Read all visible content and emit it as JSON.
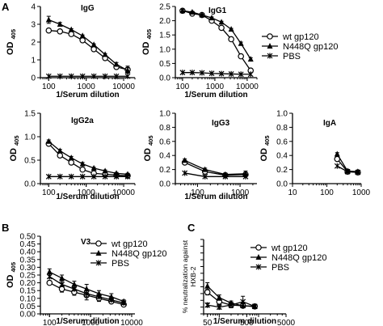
{
  "figure": {
    "panel_labels": [
      "A",
      "B",
      "C"
    ]
  },
  "marker_shapes": {
    "wt gp120": "open-circle",
    "N448Q gp120": "filled-triangle",
    "PBS": "star-cross"
  },
  "colors": {
    "ink": "#000000",
    "background": "#ffffff"
  },
  "legends": [
    {
      "panel": "IgG1",
      "entries": [
        "wt gp120",
        "N448Q gp120",
        "PBS"
      ]
    },
    {
      "panel": "V3",
      "entries": [
        "wt gp120",
        "N448Q gp120",
        "PBS"
      ]
    },
    {
      "panel": "HXB-2 neutralization",
      "entries": [
        "wt gp120",
        "N448Q gp120",
        "PBS"
      ]
    }
  ],
  "chart_data": [
    {
      "type": "line",
      "panel_label": "A",
      "title": "IgG",
      "xlabel": "1/Serum dilution",
      "ylabel": "OD 405",
      "xscale": "log",
      "xlim": [
        60,
        20000
      ],
      "ylim": [
        0,
        4
      ],
      "xticks": [
        100,
        1000,
        10000
      ],
      "yticks": [
        0,
        1,
        2,
        3,
        4
      ],
      "xticklabels": [
        "100",
        "1000",
        "10000"
      ],
      "yticklabels": [
        "0",
        "1",
        "2",
        "3",
        "4"
      ],
      "legend": "none",
      "series": [
        {
          "name": "wt gp120",
          "marker": "open-circle",
          "x": [
            100,
            200,
            400,
            800,
            1600,
            3200,
            6400,
            12800
          ],
          "y": [
            2.65,
            2.6,
            2.45,
            2.1,
            1.6,
            1.1,
            0.6,
            0.45
          ],
          "err": [
            0.05,
            0.05,
            0.05,
            0.05,
            0.05,
            0.05,
            0.1,
            0.2
          ]
        },
        {
          "name": "N448Q gp120",
          "marker": "filled-triangle",
          "x": [
            100,
            200,
            400,
            800,
            1600,
            3200,
            6400,
            12800
          ],
          "y": [
            3.25,
            3.0,
            2.7,
            2.35,
            1.85,
            1.3,
            0.75,
            0.4
          ],
          "err": [
            0.2,
            0.1,
            0.05,
            0.05,
            0.05,
            0.05,
            0.1,
            0.15
          ]
        },
        {
          "name": "PBS",
          "marker": "star-cross",
          "x": [
            100,
            200,
            400,
            800,
            1600,
            3200,
            6400,
            12800
          ],
          "y": [
            0.08,
            0.08,
            0.08,
            0.08,
            0.08,
            0.08,
            0.08,
            0.08
          ],
          "err": [
            0,
            0,
            0,
            0,
            0,
            0,
            0,
            0
          ]
        }
      ]
    },
    {
      "type": "line",
      "title": "IgG1",
      "xlabel": "1/Serum dilution",
      "ylabel": "OD 405",
      "xscale": "log",
      "xlim": [
        60,
        20000
      ],
      "ylim": [
        0,
        2.5
      ],
      "xticks": [
        100,
        1000,
        10000
      ],
      "yticks": [
        0,
        0.5,
        1,
        1.5,
        2,
        2.5
      ],
      "xticklabels": [
        "100",
        "1000",
        "10000"
      ],
      "yticklabels": [
        "0.0",
        "0.5",
        "1.0",
        "1.5",
        "2.0",
        "2.5"
      ],
      "legend": "right",
      "series": [
        {
          "name": "wt gp120",
          "marker": "open-circle",
          "x": [
            100,
            200,
            400,
            800,
            1600,
            3200,
            6400,
            12800
          ],
          "y": [
            2.35,
            2.25,
            2.2,
            2.0,
            1.75,
            1.35,
            0.75,
            0.25
          ],
          "err": [
            0.05,
            0.03,
            0.03,
            0.03,
            0.03,
            0.03,
            0.05,
            0.05
          ]
        },
        {
          "name": "N448Q gp120",
          "marker": "filled-triangle",
          "x": [
            100,
            200,
            400,
            800,
            1600,
            3200,
            6400,
            12800
          ],
          "y": [
            2.35,
            2.3,
            2.2,
            2.1,
            1.95,
            1.7,
            1.2,
            0.65
          ],
          "err": [
            0.05,
            0.03,
            0.03,
            0.03,
            0.03,
            0.03,
            0.05,
            0.05
          ]
        },
        {
          "name": "PBS",
          "marker": "star-cross",
          "x": [
            100,
            200,
            400,
            800,
            1600,
            3200,
            6400,
            12800
          ],
          "y": [
            0.18,
            0.18,
            0.17,
            0.15,
            0.14,
            0.13,
            0.12,
            0.12
          ],
          "err": [
            0,
            0,
            0,
            0,
            0,
            0,
            0,
            0
          ]
        }
      ]
    },
    {
      "type": "line",
      "title": "IgG2a",
      "xlabel": "1/Serum dilution",
      "ylabel": "OD 405",
      "xscale": "log",
      "xlim": [
        60,
        20000
      ],
      "ylim": [
        0,
        1.5
      ],
      "xticks": [
        100,
        1000,
        10000
      ],
      "yticks": [
        0,
        0.5,
        1,
        1.5
      ],
      "xticklabels": [
        "100",
        "1000",
        "10000"
      ],
      "yticklabels": [
        "0.0",
        "0.5",
        "1.0",
        "1.5"
      ],
      "legend": "none",
      "series": [
        {
          "name": "wt gp120",
          "marker": "open-circle",
          "x": [
            100,
            200,
            400,
            800,
            1600,
            3200,
            6400,
            12800
          ],
          "y": [
            0.85,
            0.6,
            0.45,
            0.3,
            0.22,
            0.2,
            0.18,
            0.17
          ],
          "err": [
            0.03,
            0.03,
            0.03,
            0.03,
            0.02,
            0.02,
            0.02,
            0.02
          ]
        },
        {
          "name": "N448Q gp120",
          "marker": "filled-triangle",
          "x": [
            100,
            200,
            400,
            800,
            1600,
            3200,
            6400,
            12800
          ],
          "y": [
            0.9,
            0.7,
            0.55,
            0.42,
            0.33,
            0.27,
            0.22,
            0.2
          ],
          "err": [
            0.03,
            0.03,
            0.03,
            0.03,
            0.02,
            0.02,
            0.02,
            0.02
          ]
        },
        {
          "name": "PBS",
          "marker": "star-cross",
          "x": [
            100,
            200,
            400,
            800,
            1600,
            3200,
            6400,
            12800
          ],
          "y": [
            0.15,
            0.15,
            0.15,
            0.15,
            0.15,
            0.15,
            0.15,
            0.15
          ],
          "err": [
            0,
            0,
            0,
            0,
            0,
            0,
            0,
            0
          ]
        }
      ]
    },
    {
      "type": "line",
      "title": "IgG3",
      "xlabel": "1/Serum dilution",
      "ylabel": "OD 405",
      "xscale": "log",
      "xlim": [
        30,
        2500
      ],
      "ylim": [
        0,
        1
      ],
      "xticks": [
        100,
        1000
      ],
      "yticks": [
        0,
        0.2,
        0.4,
        0.6,
        0.8,
        1
      ],
      "xticklabels": [
        "100",
        "1000"
      ],
      "yticklabels": [
        "0.0",
        "0.2",
        "0.4",
        "0.6",
        "0.8",
        "1.0"
      ],
      "legend": "none",
      "series": [
        {
          "name": "wt gp120",
          "marker": "open-circle",
          "x": [
            50,
            150,
            450,
            1350
          ],
          "y": [
            0.3,
            0.17,
            0.12,
            0.13
          ],
          "err": [
            0.02,
            0.02,
            0.02,
            0.02
          ]
        },
        {
          "name": "N448Q gp120",
          "marker": "filled-triangle",
          "x": [
            50,
            150,
            450,
            1350
          ],
          "y": [
            0.33,
            0.2,
            0.13,
            0.14
          ],
          "err": [
            0.02,
            0.02,
            0.02,
            0.04
          ]
        },
        {
          "name": "PBS",
          "marker": "star-cross",
          "x": [
            50,
            150,
            450,
            1350
          ],
          "y": [
            0.15,
            0.1,
            0.1,
            0.1
          ],
          "err": [
            0,
            0,
            0,
            0
          ]
        }
      ]
    },
    {
      "type": "line",
      "title": "IgA",
      "xlabel": "",
      "ylabel": "OD 405",
      "xscale": "log",
      "xlim": [
        10,
        1000
      ],
      "ylim": [
        0,
        1
      ],
      "xticks": [
        10,
        100,
        1000
      ],
      "yticks": [
        0,
        0.2,
        0.4,
        0.6,
        0.8,
        1
      ],
      "xticklabels": [
        "10",
        "100",
        "1000"
      ],
      "yticklabels": [
        "0.0",
        "0.2",
        "0.4",
        "0.6",
        "0.8",
        "1.0"
      ],
      "legend": "none",
      "series": [
        {
          "name": "wt gp120",
          "marker": "open-circle",
          "x": [
            200,
            400,
            800
          ],
          "y": [
            0.35,
            0.17,
            0.16
          ],
          "err": [
            0.02,
            0.02,
            0.02
          ]
        },
        {
          "name": "N448Q gp120",
          "marker": "filled-triangle",
          "x": [
            200,
            400,
            800
          ],
          "y": [
            0.42,
            0.18,
            0.17
          ],
          "err": [
            0.02,
            0.02,
            0.02
          ]
        },
        {
          "name": "PBS",
          "marker": "star-cross",
          "x": [
            200,
            400,
            800
          ],
          "y": [
            0.25,
            0.17,
            0.16
          ],
          "err": [
            0,
            0,
            0
          ]
        }
      ]
    },
    {
      "type": "line",
      "panel_label": "B",
      "title": "V3",
      "xlabel": "1/Serum dilution",
      "ylabel": "OD 405",
      "xscale": "log",
      "xlim": [
        60,
        12000
      ],
      "ylim": [
        0,
        0.5
      ],
      "xticks": [
        100,
        1000,
        10000
      ],
      "yticks": [
        0,
        0.05,
        0.1,
        0.15,
        0.2,
        0.25,
        0.3,
        0.35,
        0.4,
        0.45,
        0.5
      ],
      "xticklabels": [
        "100",
        "1000",
        "10000"
      ],
      "yticklabels": [
        "0.00",
        "0.05",
        "0.10",
        "0.15",
        "0.20",
        "0.25",
        "0.30",
        "0.35",
        "0.40",
        "0.45",
        "0.50"
      ],
      "legend": "right",
      "series": [
        {
          "name": "wt gp120",
          "marker": "open-circle",
          "x": [
            100,
            200,
            400,
            800,
            1600,
            3200,
            6400
          ],
          "y": [
            0.2,
            0.16,
            0.14,
            0.12,
            0.1,
            0.08,
            0.06
          ],
          "err": [
            0.01,
            0.02,
            0.02,
            0.03,
            0.02,
            0.01,
            0.01
          ]
        },
        {
          "name": "N448Q gp120",
          "marker": "filled-triangle",
          "x": [
            100,
            200,
            400,
            800,
            1600,
            3200,
            6400
          ],
          "y": [
            0.27,
            0.23,
            0.19,
            0.16,
            0.13,
            0.11,
            0.08
          ],
          "err": [
            0.02,
            0.02,
            0.02,
            0.03,
            0.02,
            0.02,
            0.01
          ]
        },
        {
          "name": "PBS",
          "marker": "star-cross",
          "x": [
            100,
            200,
            400,
            800,
            1600,
            3200,
            6400
          ],
          "y": [
            0.24,
            0.19,
            0.16,
            0.13,
            0.11,
            0.09,
            0.07
          ],
          "err": [
            0.01,
            0.01,
            0.01,
            0.02,
            0.01,
            0.01,
            0.01
          ]
        }
      ]
    },
    {
      "type": "line",
      "panel_label": "C",
      "title": "",
      "xlabel": "1/Serum  dilution",
      "ylabel": "% neutralization against HXB-2",
      "ylabel_lines": [
        "% neutralization against",
        "HXB-2"
      ],
      "xscale": "log",
      "xlim": [
        40,
        5000
      ],
      "ylim": [
        -10,
        100
      ],
      "xticks": [
        50,
        500,
        5000
      ],
      "yticks": [
        -10,
        0,
        10,
        20,
        30,
        40,
        50,
        60,
        70,
        80,
        90,
        100
      ],
      "xticklabels": [
        "50",
        "500",
        "5000"
      ],
      "yticklabels": [],
      "legend": "right",
      "series": [
        {
          "name": "wt gp120",
          "marker": "open-circle",
          "x": [
            50,
            100,
            200,
            400,
            800
          ],
          "y": [
            22,
            8,
            3,
            2,
            1
          ],
          "err": [
            4,
            4,
            3,
            3,
            2
          ]
        },
        {
          "name": "N448Q gp120",
          "marker": "filled-triangle",
          "x": [
            50,
            100,
            200,
            400,
            800
          ],
          "y": [
            31,
            14,
            6,
            2,
            1
          ],
          "err": [
            5,
            4,
            3,
            3,
            2
          ]
        },
        {
          "name": "PBS",
          "marker": "star-cross",
          "x": [
            50,
            100,
            200,
            400,
            800
          ],
          "y": [
            3,
            0,
            3,
            8,
            1
          ],
          "err": [
            3,
            3,
            4,
            8,
            3
          ]
        }
      ]
    }
  ]
}
